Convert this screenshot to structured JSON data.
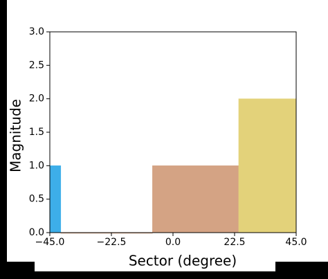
{
  "chart_data": {
    "type": "histogram",
    "xlabel": "Sector (degree)",
    "ylabel": "Magnitude",
    "bins": [
      -45,
      -41,
      -7.5,
      24,
      45
    ],
    "counts": [
      1,
      0,
      1,
      2
    ],
    "colors": [
      "#3daee9",
      "#d4a384",
      "#d4a384",
      "#e3d27a"
    ],
    "xlim": [
      -45,
      45
    ],
    "xticks": [
      {
        "value": -45,
        "label": "−45.0"
      },
      {
        "value": -22.5,
        "label": "−22.5"
      },
      {
        "value": 0,
        "label": "0.0"
      },
      {
        "value": 22.5,
        "label": "22.5"
      },
      {
        "value": 45,
        "label": "45.0"
      }
    ],
    "ylim": [
      0,
      3
    ],
    "yticks": [
      {
        "value": 0,
        "label": "0.0"
      },
      {
        "value": 0.5,
        "label": "0.5"
      },
      {
        "value": 1,
        "label": "1.0"
      },
      {
        "value": 1.5,
        "label": "1.5"
      },
      {
        "value": 2,
        "label": "2.0"
      },
      {
        "value": 2.5,
        "label": "2.5"
      },
      {
        "value": 3,
        "label": "3.0"
      }
    ]
  }
}
